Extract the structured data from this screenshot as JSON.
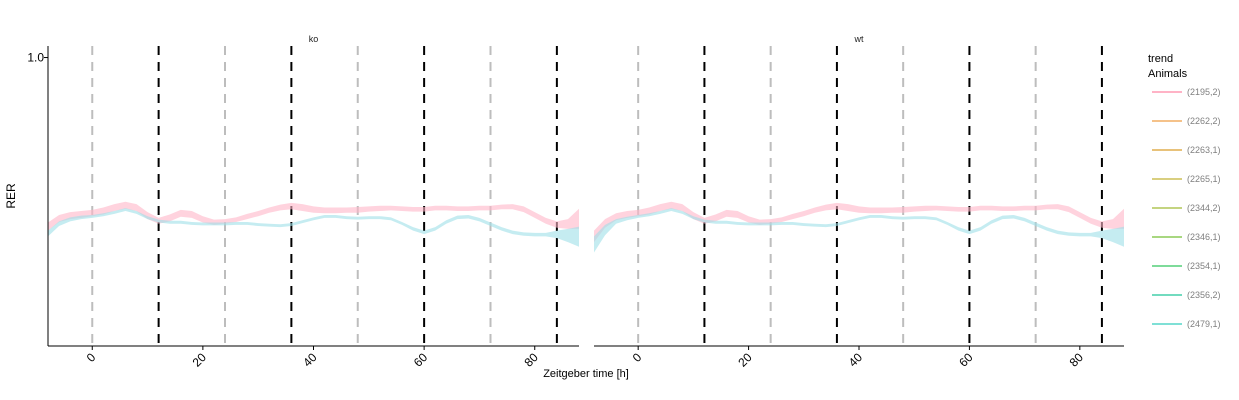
{
  "chart_data": {
    "type": "line",
    "title": "",
    "xlabel": "Zeitgeber time [h]",
    "ylabel": "RER",
    "xlim": [
      -8,
      88
    ],
    "ylim": [
      0.5,
      1.02
    ],
    "x_ticks": [
      0,
      20,
      40,
      60,
      80
    ],
    "x_tick_labels": [
      "0",
      "20",
      "40",
      "60",
      "80"
    ],
    "y_ticks": [
      1.0
    ],
    "y_tick_labels": [
      "1.0"
    ],
    "grid": false,
    "legend_position": "right",
    "legend_title_line1": "trend",
    "legend_title_line2": "Animals",
    "legend_entries": [
      {
        "label": "(2195,2)",
        "color": "#ffb3c6"
      },
      {
        "label": "(2262,2)",
        "color": "#f5c28a"
      },
      {
        "label": "(2263,1)",
        "color": "#e8c27a"
      },
      {
        "label": "(2265,1)",
        "color": "#d9cf80"
      },
      {
        "label": "(2344,2)",
        "color": "#c4d480"
      },
      {
        "label": "(2346,1)",
        "color": "#a8d780"
      },
      {
        "label": "(2354,1)",
        "color": "#7edb9a"
      },
      {
        "label": "(2356,2)",
        "color": "#72dbbf"
      },
      {
        "label": "(2479,1)",
        "color": "#7fe0d6"
      }
    ],
    "vlines_gray": [
      0,
      24,
      48,
      72
    ],
    "vlines_black": [
      12,
      36,
      60,
      84
    ],
    "panels": [
      {
        "facet": "ko",
        "series": [
          {
            "color": "#ffb6c8",
            "x": [
              -8,
              -6,
              -4,
              -2,
              0,
              2,
              4,
              6,
              8,
              10,
              12,
              14,
              16,
              18,
              20,
              22,
              24,
              26,
              28,
              30,
              32,
              34,
              36,
              38,
              40,
              42,
              44,
              46,
              48,
              50,
              52,
              54,
              56,
              58,
              60,
              62,
              64,
              66,
              68,
              70,
              72,
              74,
              76,
              78,
              80,
              82,
              84,
              86,
              88
            ],
            "lower": [
              0.7,
              0.715,
              0.72,
              0.722,
              0.725,
              0.728,
              0.734,
              0.738,
              0.734,
              0.72,
              0.712,
              0.716,
              0.724,
              0.722,
              0.714,
              0.71,
              0.712,
              0.715,
              0.72,
              0.725,
              0.731,
              0.735,
              0.737,
              0.734,
              0.731,
              0.73,
              0.73,
              0.731,
              0.731,
              0.733,
              0.734,
              0.735,
              0.734,
              0.733,
              0.733,
              0.735,
              0.735,
              0.734,
              0.734,
              0.735,
              0.735,
              0.737,
              0.737,
              0.732,
              0.722,
              0.712,
              0.705,
              0.703,
              0.703
            ],
            "upper": [
              0.714,
              0.727,
              0.732,
              0.734,
              0.736,
              0.74,
              0.746,
              0.75,
              0.746,
              0.732,
              0.722,
              0.728,
              0.736,
              0.734,
              0.725,
              0.719,
              0.72,
              0.723,
              0.729,
              0.734,
              0.74,
              0.745,
              0.748,
              0.746,
              0.742,
              0.74,
              0.74,
              0.74,
              0.741,
              0.742,
              0.743,
              0.743,
              0.742,
              0.741,
              0.741,
              0.743,
              0.743,
              0.742,
              0.742,
              0.743,
              0.743,
              0.745,
              0.746,
              0.742,
              0.732,
              0.722,
              0.716,
              0.72,
              0.738
            ]
          },
          {
            "color": "#9fdfe8",
            "x": [
              -8,
              -6,
              -4,
              -2,
              0,
              2,
              4,
              6,
              8,
              10,
              12,
              14,
              16,
              18,
              20,
              22,
              24,
              26,
              28,
              30,
              32,
              34,
              36,
              38,
              40,
              42,
              44,
              46,
              48,
              50,
              52,
              54,
              56,
              58,
              60,
              62,
              64,
              66,
              68,
              70,
              72,
              74,
              76,
              78,
              80,
              82,
              84,
              86,
              88
            ],
            "lower": [
              0.69,
              0.708,
              0.716,
              0.72,
              0.722,
              0.725,
              0.729,
              0.734,
              0.729,
              0.72,
              0.714,
              0.712,
              0.712,
              0.71,
              0.709,
              0.709,
              0.709,
              0.71,
              0.71,
              0.708,
              0.707,
              0.706,
              0.708,
              0.713,
              0.718,
              0.722,
              0.722,
              0.72,
              0.719,
              0.72,
              0.72,
              0.718,
              0.71,
              0.7,
              0.694,
              0.7,
              0.712,
              0.72,
              0.721,
              0.716,
              0.708,
              0.7,
              0.694,
              0.691,
              0.69,
              0.69,
              0.687,
              0.68,
              0.672
            ],
            "upper": [
              0.7,
              0.716,
              0.723,
              0.726,
              0.727,
              0.73,
              0.734,
              0.739,
              0.734,
              0.725,
              0.719,
              0.717,
              0.717,
              0.715,
              0.714,
              0.714,
              0.714,
              0.715,
              0.715,
              0.713,
              0.712,
              0.711,
              0.713,
              0.718,
              0.723,
              0.727,
              0.727,
              0.725,
              0.724,
              0.725,
              0.725,
              0.723,
              0.715,
              0.706,
              0.7,
              0.706,
              0.718,
              0.726,
              0.727,
              0.722,
              0.714,
              0.706,
              0.7,
              0.697,
              0.696,
              0.696,
              0.7,
              0.703,
              0.707
            ]
          }
        ]
      },
      {
        "facet": "wt",
        "series": [
          {
            "color": "#ffb6c8",
            "x": [
              -8,
              -6,
              -4,
              -2,
              0,
              2,
              4,
              6,
              8,
              10,
              12,
              14,
              16,
              18,
              20,
              22,
              24,
              26,
              28,
              30,
              32,
              34,
              36,
              38,
              40,
              42,
              44,
              46,
              48,
              50,
              52,
              54,
              56,
              58,
              60,
              62,
              64,
              66,
              68,
              70,
              72,
              74,
              76,
              78,
              80,
              82,
              84,
              86,
              88
            ],
            "lower": [
              0.68,
              0.705,
              0.718,
              0.722,
              0.725,
              0.728,
              0.734,
              0.738,
              0.734,
              0.72,
              0.712,
              0.716,
              0.724,
              0.722,
              0.714,
              0.71,
              0.712,
              0.715,
              0.72,
              0.725,
              0.731,
              0.735,
              0.737,
              0.734,
              0.731,
              0.73,
              0.73,
              0.731,
              0.731,
              0.733,
              0.734,
              0.735,
              0.734,
              0.733,
              0.733,
              0.735,
              0.735,
              0.734,
              0.734,
              0.735,
              0.735,
              0.737,
              0.737,
              0.732,
              0.722,
              0.712,
              0.705,
              0.703,
              0.703
            ],
            "upper": [
              0.7,
              0.72,
              0.73,
              0.734,
              0.736,
              0.74,
              0.746,
              0.75,
              0.746,
              0.732,
              0.722,
              0.728,
              0.736,
              0.734,
              0.725,
              0.719,
              0.72,
              0.723,
              0.729,
              0.734,
              0.74,
              0.745,
              0.748,
              0.746,
              0.742,
              0.74,
              0.74,
              0.74,
              0.741,
              0.742,
              0.743,
              0.743,
              0.742,
              0.741,
              0.741,
              0.743,
              0.743,
              0.742,
              0.742,
              0.743,
              0.743,
              0.745,
              0.746,
              0.742,
              0.732,
              0.722,
              0.716,
              0.72,
              0.738
            ]
          },
          {
            "color": "#9fdfe8",
            "x": [
              -8,
              -6,
              -4,
              -2,
              0,
              2,
              4,
              6,
              8,
              10,
              12,
              14,
              16,
              18,
              20,
              22,
              24,
              26,
              28,
              30,
              32,
              34,
              36,
              38,
              40,
              42,
              44,
              46,
              48,
              50,
              52,
              54,
              56,
              58,
              60,
              62,
              64,
              66,
              68,
              70,
              72,
              74,
              76,
              78,
              80,
              82,
              84,
              86,
              88
            ],
            "lower": [
              0.662,
              0.692,
              0.712,
              0.718,
              0.722,
              0.725,
              0.729,
              0.734,
              0.729,
              0.72,
              0.714,
              0.712,
              0.712,
              0.71,
              0.709,
              0.709,
              0.709,
              0.71,
              0.71,
              0.708,
              0.707,
              0.706,
              0.708,
              0.713,
              0.718,
              0.722,
              0.722,
              0.72,
              0.719,
              0.72,
              0.72,
              0.718,
              0.71,
              0.7,
              0.694,
              0.7,
              0.712,
              0.72,
              0.721,
              0.716,
              0.708,
              0.7,
              0.694,
              0.691,
              0.69,
              0.69,
              0.687,
              0.68,
              0.672
            ],
            "upper": [
              0.69,
              0.71,
              0.72,
              0.724,
              0.727,
              0.73,
              0.734,
              0.739,
              0.734,
              0.725,
              0.719,
              0.717,
              0.717,
              0.715,
              0.714,
              0.714,
              0.714,
              0.715,
              0.715,
              0.713,
              0.712,
              0.711,
              0.713,
              0.718,
              0.723,
              0.727,
              0.727,
              0.725,
              0.724,
              0.725,
              0.725,
              0.723,
              0.715,
              0.706,
              0.7,
              0.706,
              0.718,
              0.726,
              0.727,
              0.722,
              0.714,
              0.706,
              0.7,
              0.697,
              0.696,
              0.696,
              0.7,
              0.703,
              0.707
            ]
          }
        ]
      }
    ]
  }
}
